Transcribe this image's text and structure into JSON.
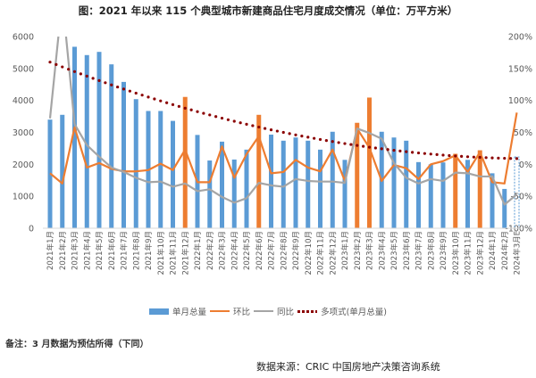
{
  "title": "图：2021 年以来 115 个典型城市新建商品住宅月度成交情况（单位：万平方米）",
  "note": "备注：3 月数据为预估所得（下同）",
  "source": "数据来源：CRIC 中国房地产决策咨询系统",
  "chart_data": {
    "type": "bar+line",
    "title": "图：2021 年以来 115 个典型城市新建商品住宅月度成交情况（单位：万平方米）",
    "categories": [
      "2021年1月",
      "2021年2月",
      "2021年3月",
      "2021年4月",
      "2021年5月",
      "2021年6月",
      "2021年7月",
      "2021年8月",
      "2021年9月",
      "2021年10月",
      "2021年11月",
      "2021年12月",
      "2022年1月",
      "2022年2月",
      "2022年3月",
      "2022年4月",
      "2022年5月",
      "2022年6月",
      "2022年7月",
      "2022年8月",
      "2022年9月",
      "2022年10月",
      "2022年11月",
      "2022年12月",
      "2023年1月",
      "2023年2月",
      "2023年3月",
      "2023年4月",
      "2023年5月",
      "2023年6月",
      "2023年7月",
      "2023年8月",
      "2023年9月",
      "2023年10月",
      "2023年11月",
      "2023年12月",
      "2024年1月",
      "2024年2月",
      "2024年3月E"
    ],
    "y_left": {
      "range": [
        0,
        6000
      ],
      "ticks": [
        "0",
        "1000",
        "2000",
        "3000",
        "4000",
        "5000",
        "6000"
      ]
    },
    "y_right": {
      "range": [
        -100,
        200
      ],
      "ticks": [
        "-100%",
        "-50%",
        "0%",
        "50%",
        "100%",
        "150%",
        "200%"
      ]
    },
    "series": [
      {
        "name": "单月总量",
        "type": "bar",
        "axis": "left",
        "color": "#5b9bd5",
        "highlight_color": "#ed7d31",
        "values": [
          3400,
          3550,
          5680,
          5420,
          5520,
          5130,
          4580,
          4040,
          3670,
          3670,
          3360,
          4110,
          2920,
          2120,
          2710,
          2150,
          2460,
          3550,
          2930,
          2740,
          2840,
          2740,
          2460,
          3020,
          2140,
          3300,
          4090,
          3020,
          2840,
          2740,
          2070,
          2000,
          2060,
          2330,
          2140,
          2440,
          1720,
          1230,
          2230
        ],
        "highlighted": [
          "2021年12月",
          "2022年6月",
          "2023年2月",
          "2023年3月",
          "2023年10月",
          "2023年12月"
        ],
        "estimated": [
          "2024年3月E"
        ]
      },
      {
        "name": "环比",
        "type": "line",
        "axis": "right",
        "color": "#ed7d31",
        "values": [
          -14,
          -30,
          58,
          -5,
          2,
          -7,
          -11,
          -11,
          -9,
          1,
          -9,
          23,
          -28,
          -28,
          28,
          -21,
          16,
          44,
          -14,
          -12,
          7,
          -5,
          -11,
          23,
          -26,
          56,
          26,
          -26,
          -1,
          -6,
          -23,
          0,
          5,
          14,
          -12,
          19,
          -28,
          -30,
          81
        ]
      },
      {
        "name": "同比",
        "type": "line",
        "axis": "right",
        "color": "#a5a5a5",
        "values": [
          72,
          260,
          63,
          30,
          12,
          -5,
          -12,
          -21,
          -28,
          -27,
          -35,
          -30,
          -42,
          -39,
          -51,
          -60,
          -53,
          -29,
          -33,
          -35,
          -23,
          -26,
          -27,
          -27,
          -29,
          56,
          49,
          40,
          2,
          -21,
          -30,
          -23,
          -26,
          -13,
          -14,
          -19,
          -19,
          -63,
          -47
        ]
      },
      {
        "name": "多项式(单月总量)",
        "type": "trendline",
        "axis": "left",
        "color": "#8b0000",
        "values": [
          5200,
          5050,
          4903,
          4761,
          4622,
          4487,
          4356,
          4229,
          4105,
          3986,
          3870,
          3758,
          3650,
          3546,
          3445,
          3348,
          3255,
          3166,
          3081,
          3000,
          2922,
          2849,
          2779,
          2713,
          2650,
          2592,
          2537,
          2487,
          2440,
          2396,
          2357,
          2322,
          2290,
          2262,
          2238,
          2218,
          2202,
          2189,
          2180
        ]
      }
    ],
    "legend_position": "bottom",
    "grid": false
  }
}
